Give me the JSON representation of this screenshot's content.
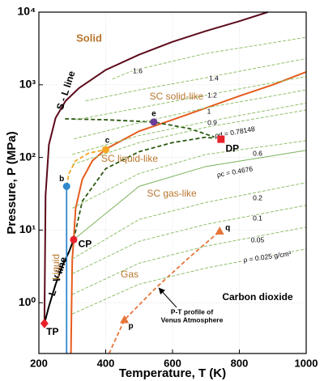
{
  "chart_data": {
    "type": "line",
    "xlabel": "Temperature, T (K)",
    "ylabel": "Pressure, P (MPa)",
    "xlim": [
      200,
      1000
    ],
    "ylim": [
      0.2,
      10000
    ],
    "log_y": true,
    "grid": true,
    "xticks": [
      200,
      400,
      600,
      800,
      1000
    ],
    "yticks": [
      {
        "value": 1,
        "label": "10⁰"
      },
      {
        "value": 10,
        "label": "10¹"
      },
      {
        "value": 100,
        "label": "10²"
      },
      {
        "value": 1000,
        "label": "10³"
      },
      {
        "value": 10000,
        "label": "10⁴"
      }
    ],
    "series": [
      {
        "name": "S - L line",
        "color": "#5c0a1a",
        "style": "solid",
        "x": [
          216.6,
          220,
          230,
          250,
          280,
          320,
          400,
          500,
          600,
          700,
          800,
          885
        ],
        "values": [
          0.518,
          30,
          150,
          350,
          600,
          900,
          1600,
          2600,
          3900,
          5500,
          7500,
          10000
        ]
      },
      {
        "name": "L - V line",
        "color": "#000000",
        "style": "solid",
        "x": [
          216.6,
          230,
          250,
          270,
          290,
          304.1
        ],
        "values": [
          0.518,
          0.89,
          1.79,
          3.2,
          5.0,
          7.38
        ]
      },
      {
        "color": "#e65c1e",
        "style": "solid",
        "x": [
          296,
          298,
          300,
          304.1,
          310,
          330,
          360,
          400,
          500,
          600,
          700,
          800,
          900,
          1000
        ],
        "values": [
          0.2,
          1,
          4,
          7.38,
          20,
          50,
          90,
          130,
          230,
          330,
          480,
          700,
          1000,
          1500
        ]
      },
      {
        "color": "#2f88cc",
        "style": "solid",
        "x": [
          283,
          283
        ],
        "values": [
          0.2,
          40
        ]
      },
      {
        "color": "#f5a623",
        "style": "dashed",
        "x": [
          283,
          290,
          310,
          350,
          400
        ],
        "values": [
          40,
          60,
          90,
          115,
          128
        ]
      },
      {
        "color": "#2d5a12",
        "style": "dashed",
        "x": [
          304.1,
          330,
          400,
          500,
          600,
          700,
          745
        ],
        "values": [
          7.38,
          25,
          70,
          120,
          160,
          190,
          178
        ]
      },
      {
        "color": "#2d5a12",
        "style": "dashed",
        "x": [
          278,
          400,
          544,
          650,
          745
        ],
        "values": [
          340,
          330,
          307,
          250,
          178
        ]
      },
      {
        "color": "#e6753a",
        "style": "dashed",
        "x": [
          410,
          456,
          550,
          650,
          741
        ],
        "values": [
          0.2,
          0.58,
          1.6,
          4.2,
          9.6
        ]
      },
      {
        "name": "1.6",
        "color": "#8fc06a",
        "style": "dashed",
        "x": [
          420,
          484,
          700,
          1000
        ],
        "values": [
          1200,
          1580,
          2700,
          4500
        ]
      },
      {
        "name": "1.4",
        "color": "#8fc06a",
        "style": "dashed",
        "x": [
          340,
          500,
          700,
          1000
        ],
        "values": [
          600,
          850,
          1250,
          2300
        ]
      },
      {
        "name": "1.2",
        "color": "#8fc06a",
        "style": "dashed",
        "x": [
          310,
          500,
          700,
          1000
        ],
        "values": [
          330,
          480,
          720,
          1300
        ]
      },
      {
        "name": "1",
        "color": "#8fc06a",
        "style": "dashed",
        "x": [
          305,
          500,
          700,
          1000
        ],
        "values": [
          180,
          300,
          480,
          850
        ]
      },
      {
        "name": "0.9",
        "color": "#8fc06a",
        "style": "dashed",
        "x": [
          300,
          500,
          700,
          1000
        ],
        "values": [
          110,
          200,
          310,
          560
        ]
      },
      {
        "name": "ρd = 0.78148",
        "color": "#8fc06a",
        "style": "dashed",
        "x": [
          300,
          500,
          700,
          1000
        ],
        "values": [
          80,
          160,
          260,
          450
        ]
      },
      {
        "name": "0.6",
        "color": "#8fc06a",
        "style": "dashed",
        "x": [
          300,
          500,
          700,
          1000
        ],
        "values": [
          20,
          60,
          110,
          170
        ]
      },
      {
        "name": "ρc = 0.4676",
        "color": "#7ab35a",
        "style": "solid",
        "x": [
          304.1,
          500,
          700,
          1000
        ],
        "values": [
          7.38,
          40,
          75,
          125
        ]
      },
      {
        "name": "0.2",
        "color": "#8fc06a",
        "style": "dashed",
        "x": [
          300,
          500,
          700,
          1000
        ],
        "values": [
          4,
          14,
          24,
          45
        ]
      },
      {
        "name": "0.1",
        "color": "#8fc06a",
        "style": "dashed",
        "x": [
          300,
          500,
          700,
          1000
        ],
        "values": [
          2.5,
          7,
          12,
          22
        ]
      },
      {
        "name": "0.05",
        "color": "#8fc06a",
        "style": "dashed",
        "x": [
          300,
          500,
          700,
          1000
        ],
        "values": [
          1.3,
          3.5,
          6,
          11
        ]
      },
      {
        "name": "ρ = 0.025 g/cm³",
        "color": "#8fc06a",
        "style": "dashed",
        "x": [
          300,
          500,
          700,
          1000
        ],
        "values": [
          0.7,
          1.8,
          3,
          5.5
        ]
      }
    ],
    "points": [
      {
        "name": "TP",
        "x": 216.6,
        "y": 0.518,
        "color": "#e8202a",
        "marker": "diamond"
      },
      {
        "name": "CP",
        "x": 304.1,
        "y": 7.38,
        "color": "#e8202a",
        "marker": "circle"
      },
      {
        "name": "DP",
        "x": 745,
        "y": 178,
        "color": "#e8202a",
        "marker": "square"
      },
      {
        "name": "b",
        "x": 283,
        "y": 40,
        "color": "#2f88cc",
        "marker": "circle"
      },
      {
        "name": "c",
        "x": 400,
        "y": 128,
        "color": "#f5a623",
        "marker": "circle"
      },
      {
        "name": "e",
        "x": 544,
        "y": 307,
        "color": "#6a3d9a",
        "marker": "circle"
      },
      {
        "name": "p",
        "x": 456,
        "y": 0.58,
        "color": "#e6753a",
        "marker": "triangle"
      },
      {
        "name": "q",
        "x": 741,
        "y": 9.6,
        "color": "#e6753a",
        "marker": "triangle"
      }
    ],
    "annotations": [
      "Solid",
      "SC solid-like",
      "SC liquid-like",
      "SC gas-like",
      "Gas",
      "Liquid",
      "Carbon dioxide",
      "P-T profile of",
      "Venus Atmosphere"
    ]
  }
}
